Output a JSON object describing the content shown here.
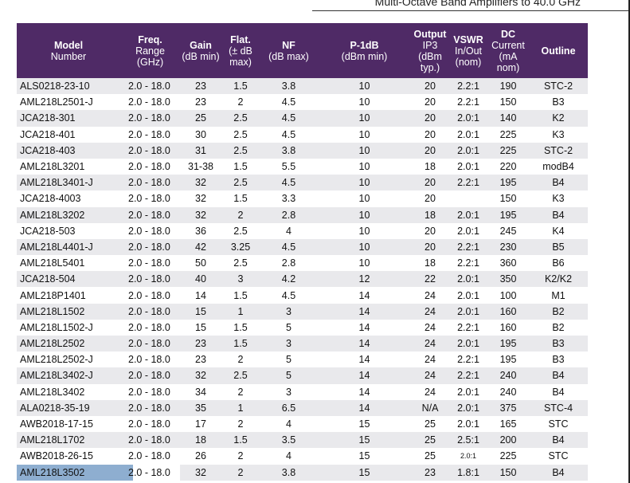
{
  "header_title": "Multi-Octave Band Amplifiers to 40.0 GHz",
  "columns": [
    {
      "label": "Model",
      "sub": [
        "Number"
      ]
    },
    {
      "label": "Freq.",
      "sub": [
        "Range",
        "(GHz)"
      ]
    },
    {
      "label": "Gain",
      "sub": [
        "(dB min)"
      ]
    },
    {
      "label": "Flat.",
      "sub": [
        "(± dB",
        "max)"
      ]
    },
    {
      "label": "NF",
      "sub": [
        "(dB max)"
      ]
    },
    {
      "label": "P-1dB",
      "sub": [
        "(dBm min)"
      ]
    },
    {
      "label": "Output",
      "sub": [
        "IP3",
        "(dBm",
        "typ.)"
      ]
    },
    {
      "label": "VSWR",
      "sub": [
        "In/Out",
        "(nom)"
      ]
    },
    {
      "label": "DC",
      "sub": [
        "Current",
        "(mA",
        "nom)"
      ]
    },
    {
      "label": "Outline",
      "sub": []
    }
  ],
  "rows": [
    [
      "ALS0218-23-10",
      "2.0 - 18.0",
      "23",
      "1.5",
      "3.8",
      "10",
      "20",
      "2.2:1",
      "190",
      "STC-2"
    ],
    [
      "AML218L2501-J",
      "2.0 - 18.0",
      "23",
      "2",
      "4.5",
      "10",
      "20",
      "2.2:1",
      "150",
      "B3"
    ],
    [
      "JCA218-301",
      "2.0 - 18.0",
      "25",
      "2.5",
      "4.5",
      "10",
      "20",
      "2.0:1",
      "140",
      "K2"
    ],
    [
      "JCA218-401",
      "2.0 - 18.0",
      "30",
      "2.5",
      "4.5",
      "10",
      "20",
      "2.0:1",
      "225",
      "K3"
    ],
    [
      "JCA218-403",
      "2.0 - 18.0",
      "31",
      "2.5",
      "3.8",
      "10",
      "20",
      "2.0:1",
      "225",
      "STC-2"
    ],
    [
      "AML218L3201",
      "2.0 - 18.0",
      "31-38",
      "1.5",
      "5.5",
      "10",
      "18",
      "2.0:1",
      "220",
      "modB4"
    ],
    [
      "AML218L3401-J",
      "2.0 - 18.0",
      "32",
      "2.5",
      "4.5",
      "10",
      "20",
      "2.2:1",
      "195",
      "B4"
    ],
    [
      "JCA218-4003",
      "2.0 - 18.0",
      "32",
      "1.5",
      "3.3",
      "10",
      "20",
      "",
      "150",
      "K3"
    ],
    [
      "AML218L3202",
      "2.0 - 18.0",
      "32",
      "2",
      "2.8",
      "10",
      "18",
      "2.0:1",
      "195",
      "B4"
    ],
    [
      "JCA218-503",
      "2.0 - 18.0",
      "36",
      "2.5",
      "4",
      "10",
      "20",
      "2.0:1",
      "245",
      "K4"
    ],
    [
      "AML218L4401-J",
      "2.0 - 18.0",
      "42",
      "3.25",
      "4.5",
      "10",
      "20",
      "2.2:1",
      "230",
      "B5"
    ],
    [
      "AML218L5401",
      "2.0 - 18.0",
      "50",
      "2.5",
      "2.8",
      "10",
      "18",
      "2.2:1",
      "360",
      "B6"
    ],
    [
      "JCA218-504",
      "2.0 - 18.0",
      "40",
      "3",
      "4.2",
      "12",
      "22",
      "2.0:1",
      "350",
      "K2/K2"
    ],
    [
      "AML218P1401",
      "2.0 - 18.0",
      "14",
      "1.5",
      "4.5",
      "14",
      "24",
      "2.0:1",
      "100",
      "M1"
    ],
    [
      "AML218L1502",
      "2.0 - 18.0",
      "15",
      "1",
      "3",
      "14",
      "24",
      "2.0:1",
      "160",
      "B2"
    ],
    [
      "AML218L1502-J",
      "2.0 - 18.0",
      "15",
      "1.5",
      "5",
      "14",
      "24",
      "2.2:1",
      "160",
      "B2"
    ],
    [
      "AML218L2502",
      "2.0 - 18.0",
      "23",
      "1.5",
      "3",
      "14",
      "24",
      "2.0:1",
      "195",
      "B3"
    ],
    [
      "AML218L2502-J",
      "2.0 - 18.0",
      "23",
      "2",
      "5",
      "14",
      "24",
      "2.2:1",
      "195",
      "B3"
    ],
    [
      "AML218L3402-J",
      "2.0 - 18.0",
      "32",
      "2.5",
      "5",
      "14",
      "24",
      "2.2:1",
      "240",
      "B4"
    ],
    [
      "AML218L3402",
      "2.0 - 18.0",
      "34",
      "2",
      "3",
      "14",
      "24",
      "2.0:1",
      "240",
      "B4"
    ],
    [
      "ALA0218-35-19",
      "2.0 - 18.0",
      "35",
      "1",
      "6.5",
      "14",
      "N/A",
      "2.0:1",
      "375",
      "STC-4"
    ],
    [
      "AWB2018-17-15",
      "2.0 - 18.0",
      "17",
      "2",
      "4",
      "15",
      "25",
      "2.0:1",
      "165",
      "STC"
    ],
    [
      "AML218L1702",
      "2.0 - 18.0",
      "18",
      "1.5",
      "3.5",
      "15",
      "25",
      "2.5:1",
      "200",
      "B4"
    ],
    [
      "AWB2018-26-15",
      "2.0 - 18.0",
      "26",
      "2",
      "4",
      "15",
      "25",
      "2.0:1",
      "225",
      "STC"
    ],
    [
      "AML218L3502",
      "2.0 - 18.0",
      "32",
      "2",
      "3.8",
      "15",
      "23",
      "1.8:1",
      "150",
      "B4"
    ]
  ],
  "small_text_cell": {
    "row": 23,
    "col": 7
  },
  "selected_row": 24,
  "colors": {
    "header_bg": "#4f2a66",
    "stripe": "#e9e9ec",
    "selection": "#8eaed0"
  }
}
